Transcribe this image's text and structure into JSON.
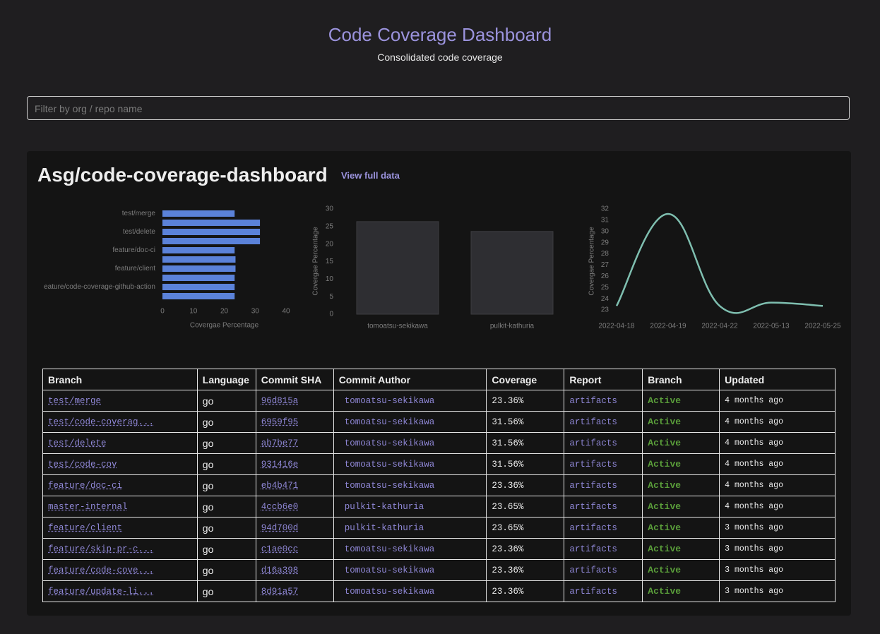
{
  "header": {
    "title": "Code Coverage Dashboard",
    "subtitle": "Consolidated code coverage"
  },
  "filter": {
    "placeholder": "Filter by org / repo name"
  },
  "repo": {
    "name": "Asg/code-coverage-dashboard",
    "link": "View full data"
  },
  "chart_data": [
    {
      "type": "barh",
      "color": "#5b82d9",
      "x_label": "Covergae Percentage",
      "categories": [
        "test/merge",
        null,
        "test/delete",
        null,
        "feature/doc-ci",
        null,
        "feature/client",
        null,
        "eature/code-coverage-github-action",
        null
      ],
      "values": [
        23.36,
        31.56,
        31.56,
        31.56,
        23.36,
        23.65,
        23.65,
        23.36,
        23.36,
        23.36
      ],
      "xlim": [
        0,
        40
      ],
      "xticks": [
        0,
        10,
        20,
        30,
        40
      ]
    },
    {
      "type": "bar",
      "color": "#2e2e32",
      "y_label": "Covergae Percentage",
      "categories": [
        "tomoatsu-sekikawa",
        "pulkit-kathuria"
      ],
      "values": [
        26.4,
        23.6
      ],
      "ylim": [
        0,
        30
      ],
      "yticks": [
        0,
        5,
        10,
        15,
        20,
        25,
        30
      ]
    },
    {
      "type": "line",
      "color": "#7fbfb0",
      "y_label": "Covergae Percentage",
      "categories": [
        "2022-04-18",
        "2022-04-19",
        "2022-04-22",
        "2022-05-13",
        "2022-05-25"
      ],
      "values": [
        23.36,
        31.56,
        23.36,
        23.65,
        23.36
      ],
      "ylim": [
        23,
        32
      ],
      "yticks": [
        23,
        24,
        25,
        26,
        27,
        28,
        29,
        30,
        31,
        32
      ]
    }
  ],
  "table": {
    "columns": [
      "Branch",
      "Language",
      "Commit SHA",
      "Commit Author",
      "Coverage",
      "Report",
      "Branch",
      "Updated"
    ],
    "rows": [
      [
        "test/merge",
        "go",
        "96d815a",
        "tomoatsu-sekikawa",
        "23.36%",
        "artifacts",
        "Active",
        "4 months ago"
      ],
      [
        "test/code-coverag...",
        "go",
        "6959f95",
        "tomoatsu-sekikawa",
        "31.56%",
        "artifacts",
        "Active",
        "4 months ago"
      ],
      [
        "test/delete",
        "go",
        "ab7be77",
        "tomoatsu-sekikawa",
        "31.56%",
        "artifacts",
        "Active",
        "4 months ago"
      ],
      [
        "test/code-cov",
        "go",
        "931416e",
        "tomoatsu-sekikawa",
        "31.56%",
        "artifacts",
        "Active",
        "4 months ago"
      ],
      [
        "feature/doc-ci",
        "go",
        "eb4b471",
        "tomoatsu-sekikawa",
        "23.36%",
        "artifacts",
        "Active",
        "4 months ago"
      ],
      [
        "master-internal",
        "go",
        "4ccb6e0",
        "pulkit-kathuria",
        "23.65%",
        "artifacts",
        "Active",
        "4 months ago"
      ],
      [
        "feature/client",
        "go",
        "94d700d",
        "pulkit-kathuria",
        "23.65%",
        "artifacts",
        "Active",
        "3 months ago"
      ],
      [
        "feature/skip-pr-c...",
        "go",
        "c1ae0cc",
        "tomoatsu-sekikawa",
        "23.36%",
        "artifacts",
        "Active",
        "3 months ago"
      ],
      [
        "feature/code-cove...",
        "go",
        "d16a398",
        "tomoatsu-sekikawa",
        "23.36%",
        "artifacts",
        "Active",
        "3 months ago"
      ],
      [
        "feature/update-li...",
        "go",
        "8d91a57",
        "tomoatsu-sekikawa",
        "23.36%",
        "artifacts",
        "Active",
        "3 months ago"
      ]
    ]
  }
}
